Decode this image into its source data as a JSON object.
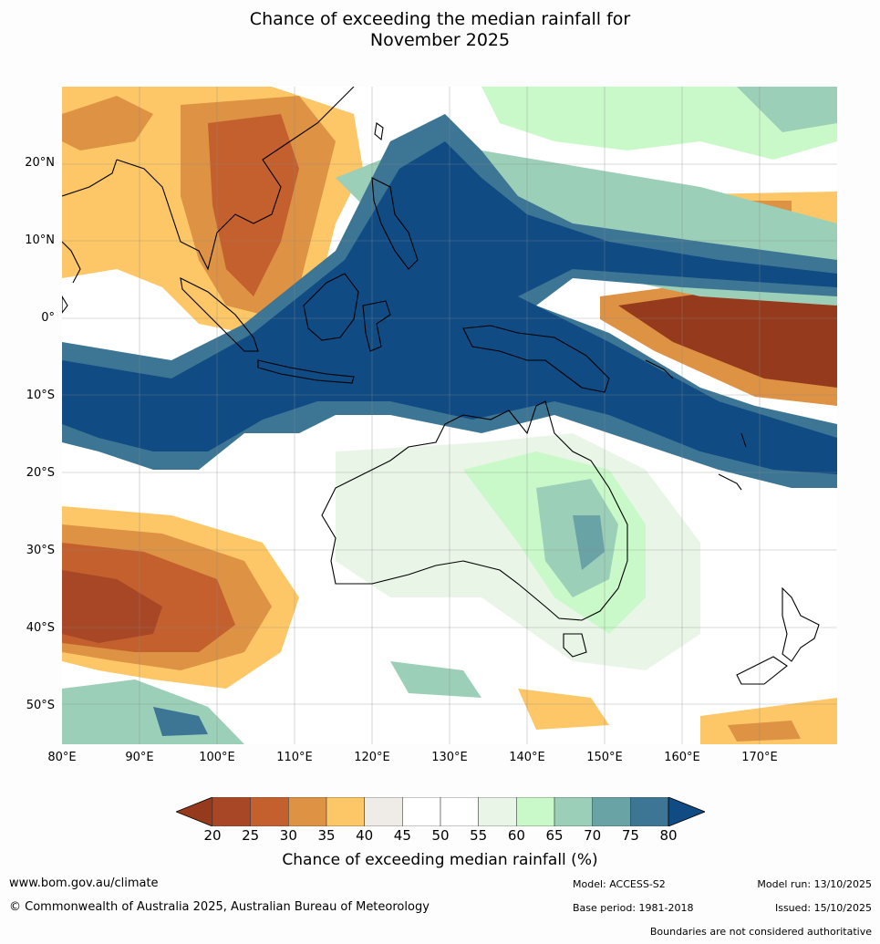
{
  "title_line1": "Chance of exceeding the median rainfall for",
  "title_line2": "November 2025",
  "lat_labels": [
    "20°N",
    "10°N",
    "0°",
    "10°S",
    "20°S",
    "30°S",
    "40°S",
    "50°S"
  ],
  "lon_labels": [
    "80°E",
    "90°E",
    "100°E",
    "110°E",
    "120°E",
    "130°E",
    "140°E",
    "150°E",
    "160°E",
    "170°E"
  ],
  "colorbar": {
    "ticks": [
      "20",
      "25",
      "30",
      "35",
      "40",
      "45",
      "50",
      "55",
      "60",
      "65",
      "70",
      "75",
      "80"
    ],
    "colors": [
      "#a74726",
      "#c4602d",
      "#de9244",
      "#fdc767",
      "#efebe6",
      "#ffffff",
      "#ffffff",
      "#e9f5e7",
      "#c9f9c9",
      "#9bcfb8",
      "#6aa3a6",
      "#3d7594"
    ],
    "low_color": "#963a1d",
    "high_color": "#114b83",
    "label": "Chance of exceeding median rainfall (%)"
  },
  "footer": {
    "url": "www.bom.gov.au/climate",
    "copyright": "© Commonwealth of Australia 2025, Australian Bureau of Meteorology",
    "model": "Model: ACCESS-S2",
    "base_period": "Base period: 1981-2018",
    "model_run": "Model run: 13/10/2025",
    "issued": "Issued: 15/10/2025",
    "disclaimer": "Boundaries are not considered authoritative"
  }
}
